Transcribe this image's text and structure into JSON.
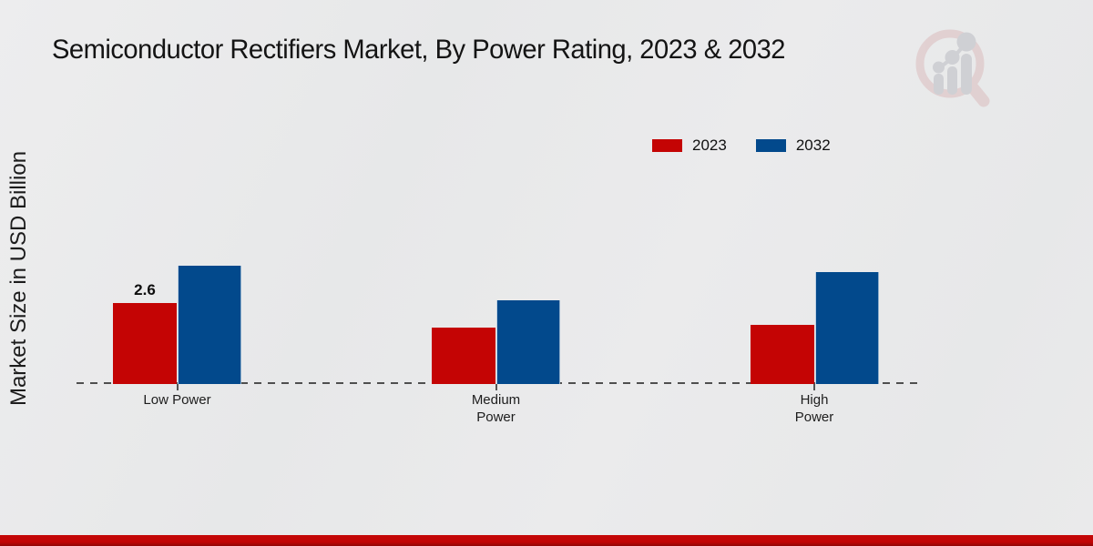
{
  "title": "Semiconductor Rectifiers Market, By Power Rating, 2023 & 2032",
  "y_axis_label": "Market Size in USD Billion",
  "legend": {
    "items": [
      {
        "label": "2023",
        "color": "#c40404"
      },
      {
        "label": "2032",
        "color": "#02498c"
      }
    ]
  },
  "chart_data": {
    "type": "bar",
    "title": "Semiconductor Rectifiers Market, By Power Rating, 2023 & 2032",
    "ylabel": "Market Size in USD Billion",
    "xlabel": "",
    "categories": [
      "Low Power",
      "Medium Power",
      "High Power"
    ],
    "category_label_lines": [
      [
        "Low Power"
      ],
      [
        "Medium",
        "Power"
      ],
      [
        "High",
        "Power"
      ]
    ],
    "series": [
      {
        "name": "2023",
        "color": "#c40404",
        "values": [
          2.6,
          1.8,
          1.9
        ]
      },
      {
        "name": "2032",
        "color": "#02498c",
        "values": [
          3.8,
          2.7,
          3.6
        ]
      }
    ],
    "bar_value_labels": [
      [
        "2.6",
        "",
        ""
      ],
      [
        "",
        "",
        ""
      ]
    ],
    "unit": "USD Billion",
    "ylim": [
      0,
      4.2
    ],
    "grid": false,
    "baseline_style": "dashed",
    "legend_position": "top-right"
  },
  "footer": {
    "accent_color": "#c10505"
  }
}
